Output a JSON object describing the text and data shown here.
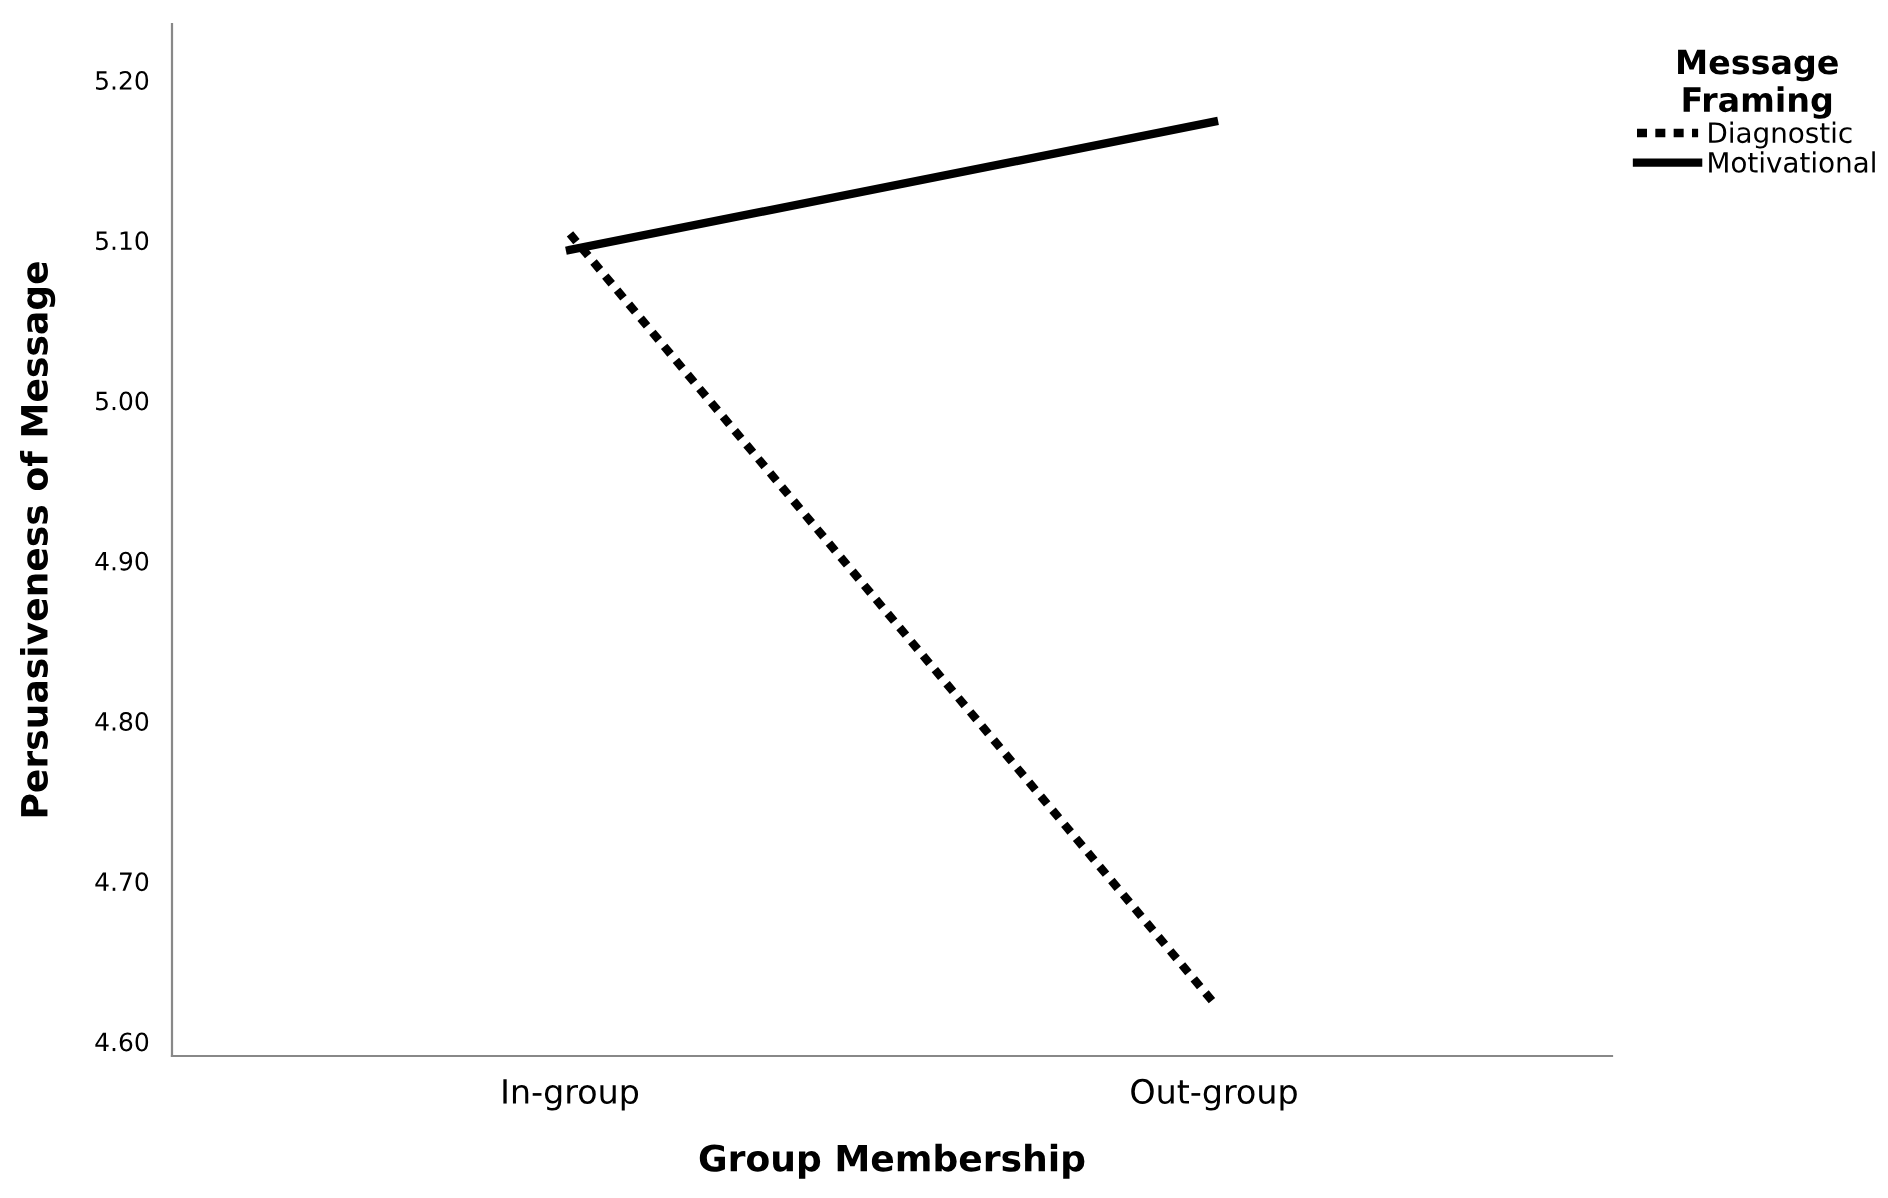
{
  "chart_data": {
    "type": "line",
    "xlabel": "Group Membership",
    "ylabel": "Persuasiveness of Message",
    "legend_title": "Message\nFraming",
    "categories": [
      "In-group",
      "Out-group"
    ],
    "series": [
      {
        "name": "Diagnostic",
        "color": "#000000",
        "line_style": "dotted",
        "values": [
          5.104,
          4.624
        ]
      },
      {
        "name": "Motivational",
        "color": "#000000",
        "line_style": "solid",
        "values": [
          5.094,
          5.174
        ]
      }
    ],
    "ylim": [
      4.591,
      5.235
    ],
    "yticks": [
      {
        "value": 4.6,
        "label": "4.60"
      },
      {
        "value": 4.7,
        "label": "4.70"
      },
      {
        "value": 4.8,
        "label": "4.80"
      },
      {
        "value": 4.9,
        "label": "4.90"
      },
      {
        "value": 5.0,
        "label": "5.00"
      },
      {
        "value": 5.1,
        "label": "5.10"
      },
      {
        "value": 5.2,
        "label": "5.20"
      }
    ],
    "grid": false,
    "legend": "top right",
    "marker": "none"
  }
}
